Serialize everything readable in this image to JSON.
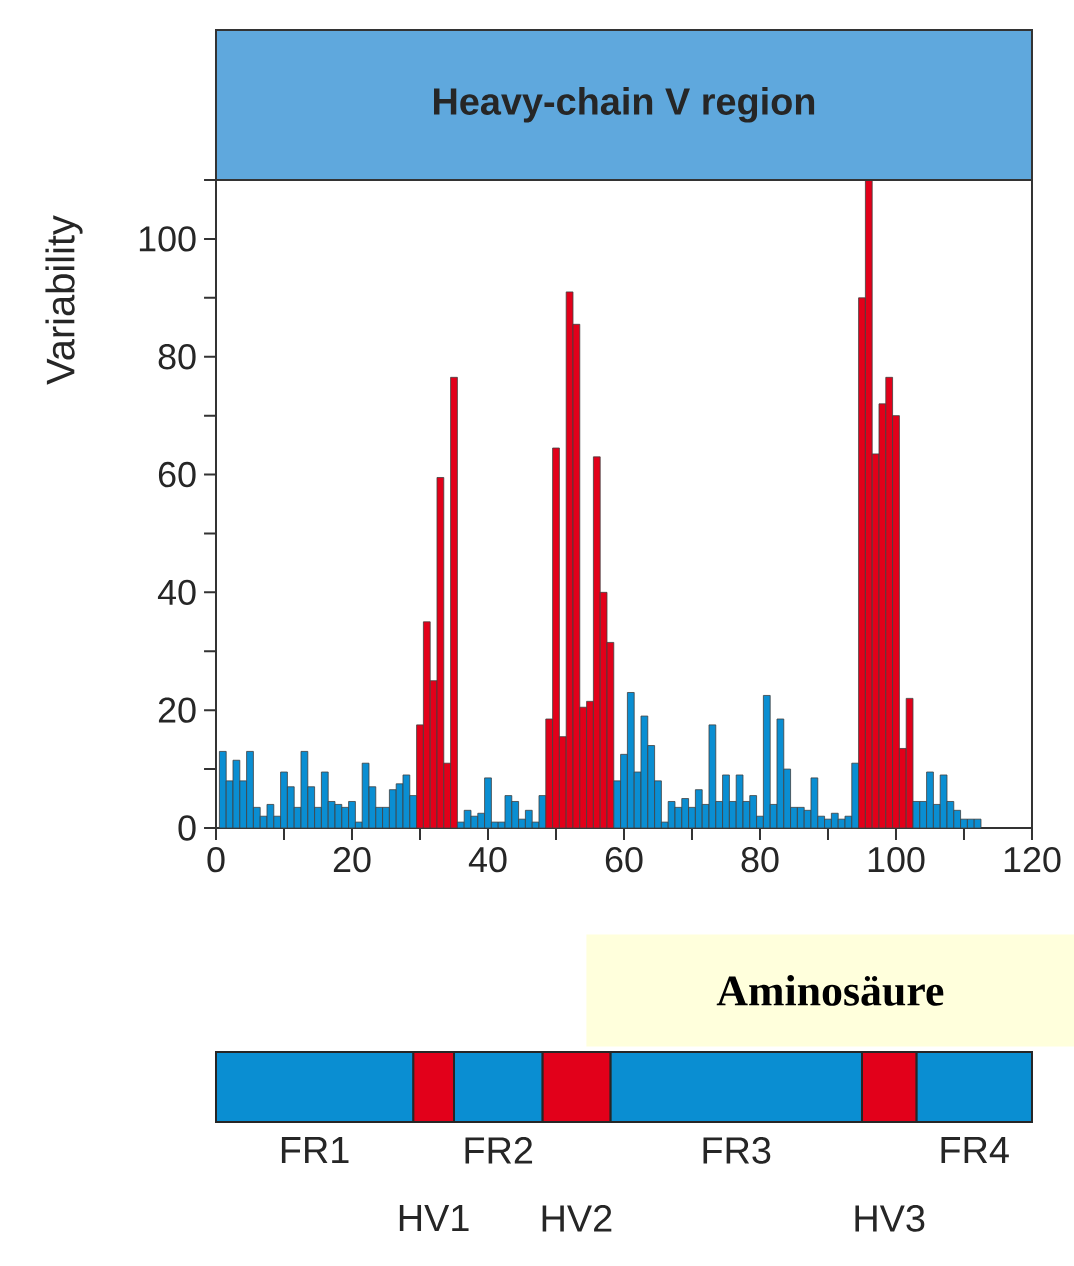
{
  "chart_data": [
    {
      "type": "bar",
      "title": "Heavy-chain V region",
      "xlabel": "Aminosäure",
      "ylabel": "Variability",
      "x": [
        1,
        2,
        3,
        4,
        5,
        6,
        7,
        8,
        9,
        10,
        11,
        12,
        13,
        14,
        15,
        16,
        17,
        18,
        19,
        20,
        21,
        22,
        23,
        24,
        25,
        26,
        27,
        28,
        29,
        30,
        31,
        32,
        33,
        34,
        35,
        36,
        37,
        38,
        39,
        40,
        41,
        42,
        43,
        44,
        45,
        46,
        47,
        48,
        49,
        50,
        51,
        52,
        53,
        54,
        55,
        56,
        57,
        58,
        59,
        60,
        61,
        62,
        63,
        64,
        65,
        66,
        67,
        68,
        69,
        70,
        71,
        72,
        73,
        74,
        75,
        76,
        77,
        78,
        79,
        80,
        81,
        82,
        83,
        84,
        85,
        86,
        87,
        88,
        89,
        90,
        91,
        92,
        93,
        94,
        95,
        96,
        97,
        98,
        99,
        100,
        101,
        102,
        103,
        104,
        105,
        106,
        107,
        108,
        109,
        110,
        111,
        112
      ],
      "values": [
        13,
        8,
        11.5,
        8,
        13,
        3.5,
        2,
        4,
        2,
        9.5,
        7,
        3.5,
        13,
        7,
        3.5,
        9.5,
        4.5,
        4,
        3.5,
        4.5,
        1,
        11,
        7,
        3.5,
        3.5,
        6.5,
        7.5,
        9,
        5.5,
        17.5,
        35,
        25,
        59.5,
        11,
        76.5,
        1,
        3,
        2,
        2.5,
        8.5,
        1,
        1,
        5.5,
        4.5,
        1.5,
        3,
        1,
        5.5,
        18.5,
        64.5,
        15.5,
        91,
        85.5,
        20.5,
        21.5,
        63,
        40,
        31.5,
        8,
        12.5,
        23,
        9.5,
        19,
        14,
        8,
        1,
        4.5,
        3.5,
        5,
        3.5,
        6.5,
        4,
        17.5,
        4.5,
        9,
        4.5,
        9,
        4.5,
        5.5,
        2,
        22.5,
        4,
        18.5,
        10,
        3.5,
        3.5,
        3,
        8.5,
        2,
        1.5,
        2.5,
        1.5,
        2,
        11,
        90,
        110,
        63.5,
        72,
        76.5,
        70,
        13.5,
        22,
        4.5,
        4.5,
        9.5,
        4,
        9,
        4.5,
        3,
        1.5,
        1.5,
        1.5
      ],
      "colors": [
        "#0a8ed2",
        "#0a8ed2",
        "#0a8ed2",
        "#0a8ed2",
        "#0a8ed2",
        "#0a8ed2",
        "#0a8ed2",
        "#0a8ed2",
        "#0a8ed2",
        "#0a8ed2",
        "#0a8ed2",
        "#0a8ed2",
        "#0a8ed2",
        "#0a8ed2",
        "#0a8ed2",
        "#0a8ed2",
        "#0a8ed2",
        "#0a8ed2",
        "#0a8ed2",
        "#0a8ed2",
        "#0a8ed2",
        "#0a8ed2",
        "#0a8ed2",
        "#0a8ed2",
        "#0a8ed2",
        "#0a8ed2",
        "#0a8ed2",
        "#0a8ed2",
        "#0a8ed2",
        "#e2001a",
        "#e2001a",
        "#e2001a",
        "#e2001a",
        "#e2001a",
        "#e2001a",
        "#0a8ed2",
        "#0a8ed2",
        "#0a8ed2",
        "#0a8ed2",
        "#0a8ed2",
        "#0a8ed2",
        "#0a8ed2",
        "#0a8ed2",
        "#0a8ed2",
        "#0a8ed2",
        "#0a8ed2",
        "#0a8ed2",
        "#0a8ed2",
        "#e2001a",
        "#e2001a",
        "#e2001a",
        "#e2001a",
        "#e2001a",
        "#e2001a",
        "#e2001a",
        "#e2001a",
        "#e2001a",
        "#e2001a",
        "#0a8ed2",
        "#0a8ed2",
        "#0a8ed2",
        "#0a8ed2",
        "#0a8ed2",
        "#0a8ed2",
        "#0a8ed2",
        "#0a8ed2",
        "#0a8ed2",
        "#0a8ed2",
        "#0a8ed2",
        "#0a8ed2",
        "#0a8ed2",
        "#0a8ed2",
        "#0a8ed2",
        "#0a8ed2",
        "#0a8ed2",
        "#0a8ed2",
        "#0a8ed2",
        "#0a8ed2",
        "#0a8ed2",
        "#0a8ed2",
        "#0a8ed2",
        "#0a8ed2",
        "#0a8ed2",
        "#0a8ed2",
        "#0a8ed2",
        "#0a8ed2",
        "#0a8ed2",
        "#0a8ed2",
        "#0a8ed2",
        "#0a8ed2",
        "#0a8ed2",
        "#0a8ed2",
        "#0a8ed2",
        "#0a8ed2",
        "#e2001a",
        "#e2001a",
        "#e2001a",
        "#e2001a",
        "#e2001a",
        "#e2001a",
        "#e2001a",
        "#e2001a",
        "#0a8ed2",
        "#0a8ed2",
        "#0a8ed2",
        "#0a8ed2",
        "#0a8ed2",
        "#0a8ed2",
        "#0a8ed2",
        "#0a8ed2",
        "#0a8ed2",
        "#0a8ed2"
      ],
      "xlim": [
        0,
        120
      ],
      "ylim": [
        0,
        110
      ],
      "xticks": [
        0,
        {
          "value": 10,
          "label": null
        },
        20,
        {
          "value": 30,
          "label": null
        },
        40,
        {
          "value": 50,
          "label": null
        },
        60,
        {
          "value": 70,
          "label": null
        },
        80,
        {
          "value": 90,
          "label": null
        },
        100,
        {
          "value": 110,
          "label": null
        },
        120
      ],
      "yticks": [
        0,
        {
          "value": 10,
          "label": null
        },
        20,
        {
          "value": 30,
          "label": null
        },
        40,
        {
          "value": 50,
          "label": null
        },
        60,
        {
          "value": 70,
          "label": null
        },
        80,
        {
          "value": 90,
          "label": null
        },
        100,
        {
          "value": 110,
          "label": null
        }
      ]
    },
    {
      "type": "bar",
      "orientation": "horizontal",
      "stacked": true,
      "categories": [
        null
      ],
      "xlim": [
        0,
        120
      ],
      "tick_labels": false,
      "series": [
        {
          "name": "FR1",
          "color": "#0a8ed2",
          "values": [
            29
          ]
        },
        {
          "name": "HV1",
          "color": "#e2001a",
          "values": [
            6
          ]
        },
        {
          "name": "FR2",
          "color": "#0a8ed2",
          "values": [
            13
          ]
        },
        {
          "name": "HV2",
          "color": "#e2001a",
          "values": [
            10
          ]
        },
        {
          "name": "FR3",
          "color": "#0a8ed2",
          "values": [
            37
          ]
        },
        {
          "name": "HV3",
          "color": "#e2001a",
          "values": [
            8
          ]
        },
        {
          "name": "FR4",
          "color": "#0a8ed2",
          "values": [
            17
          ]
        }
      ]
    }
  ]
}
